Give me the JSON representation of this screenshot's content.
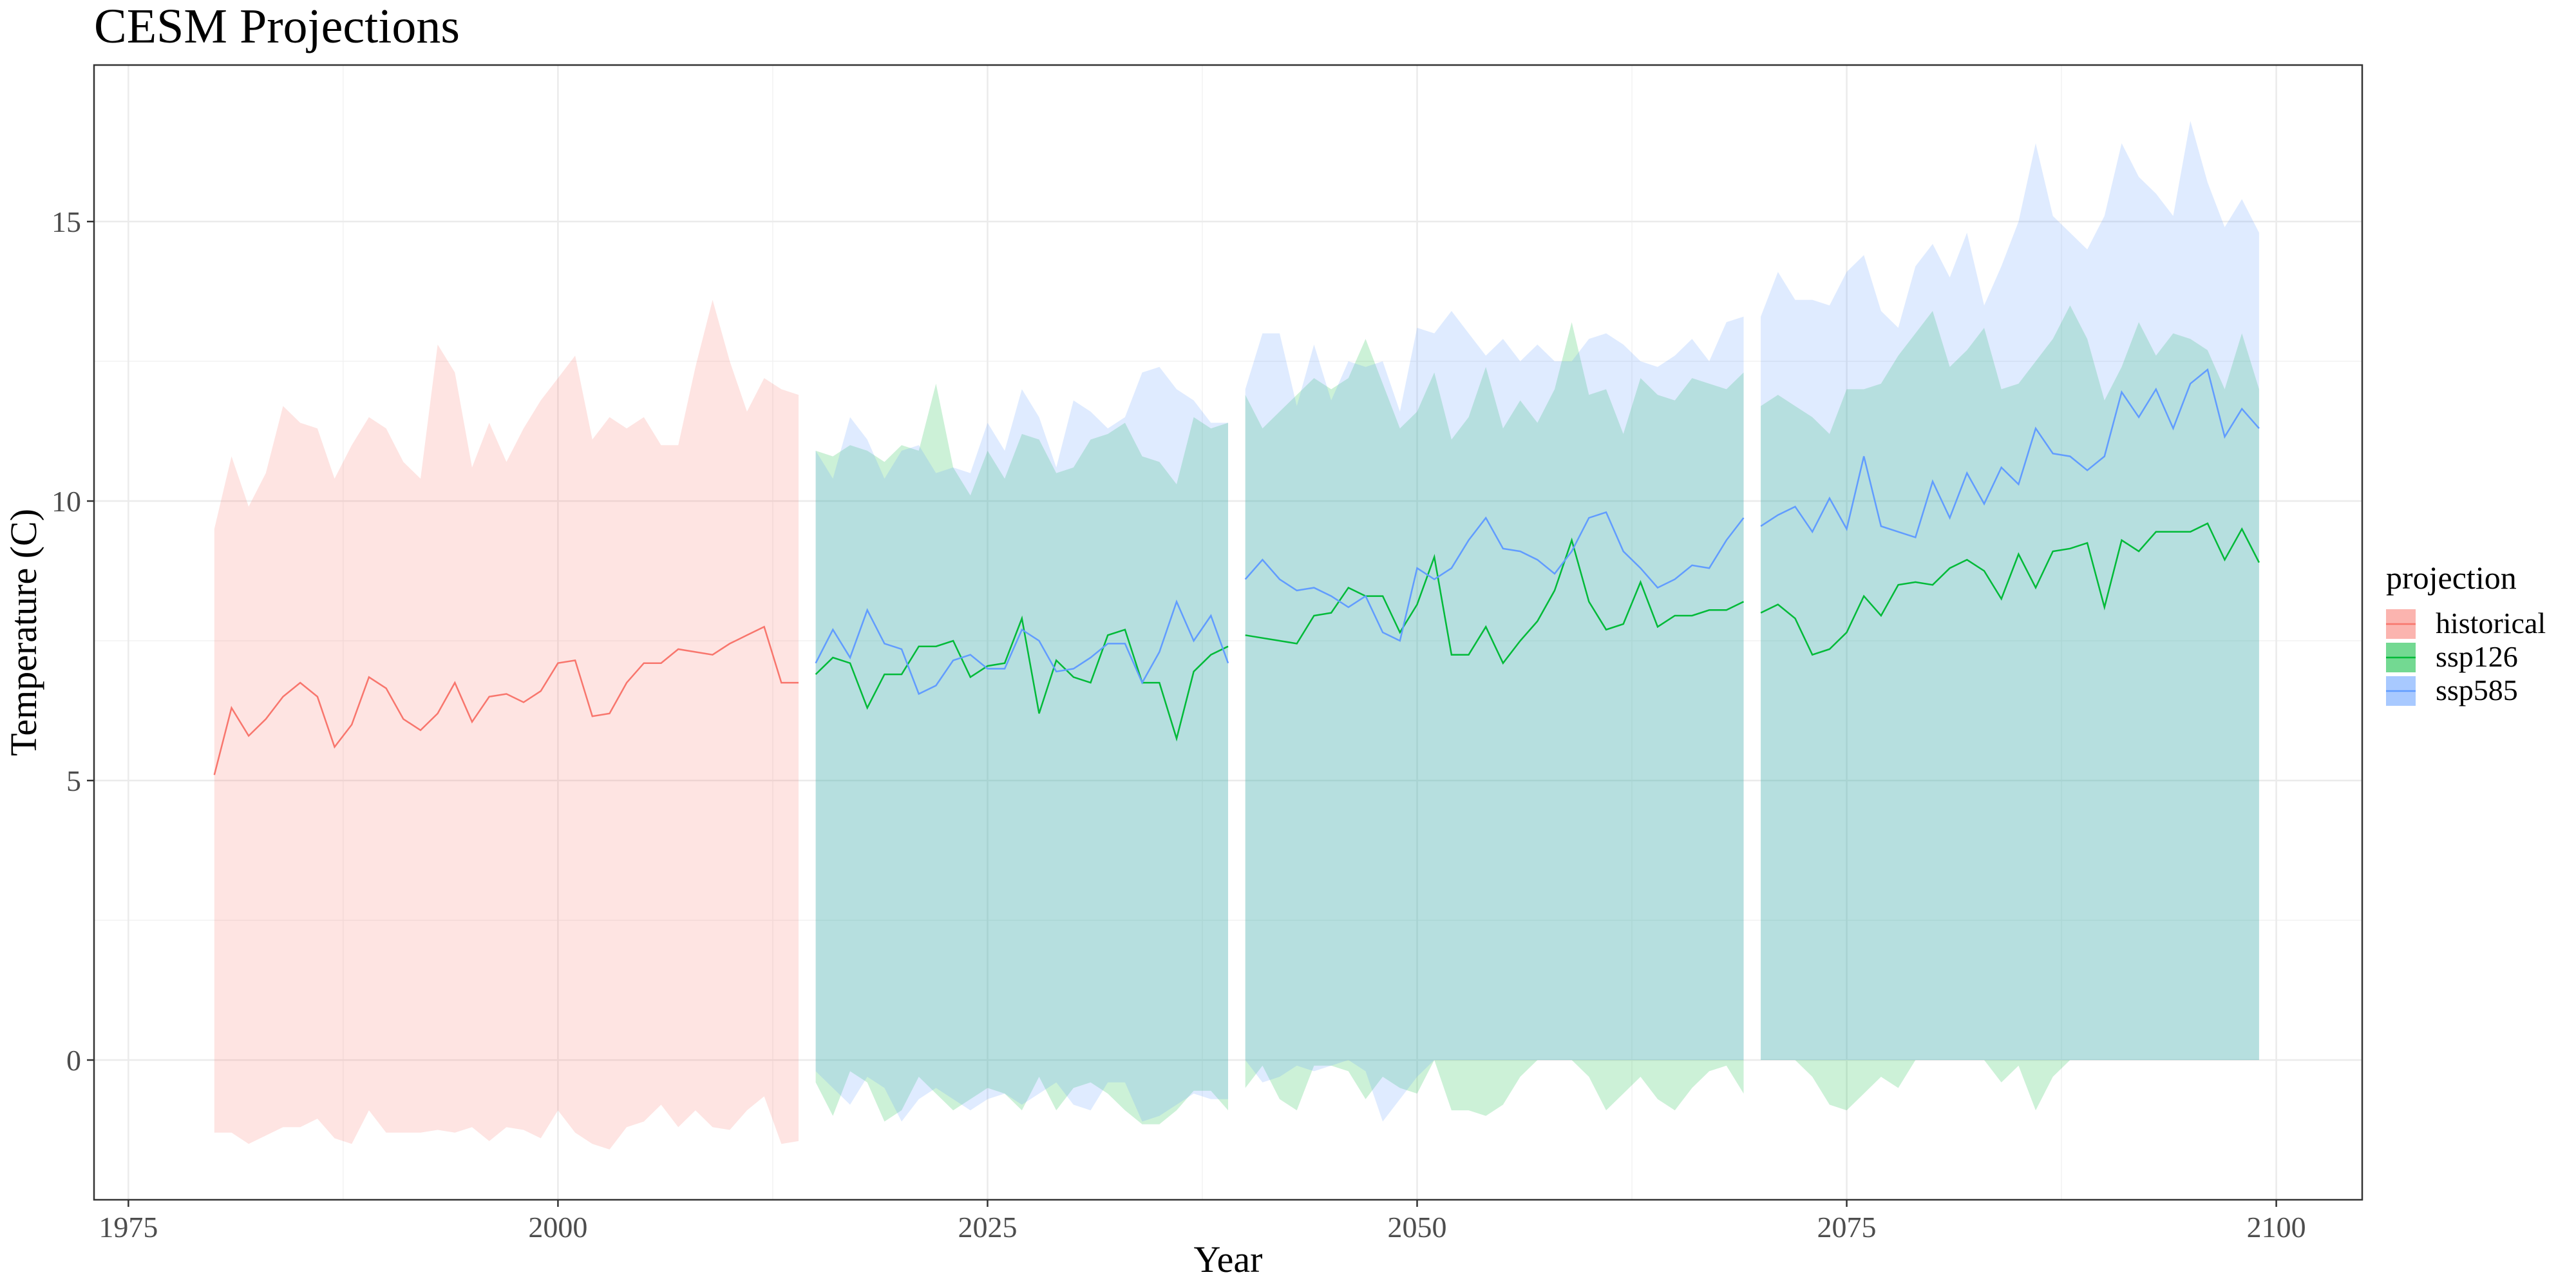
{
  "chart_data": {
    "type": "area",
    "title": "CESM Projections",
    "xlabel": "Year",
    "ylabel": "Temperature (C)",
    "xlim": [
      1973,
      2105
    ],
    "ylim": [
      -2.5,
      17.8
    ],
    "x_ticks": [
      1975,
      2000,
      2025,
      2050,
      2075,
      2100
    ],
    "y_ticks": [
      0,
      5,
      10,
      15
    ],
    "grid": true,
    "legend": {
      "title": "projection",
      "position": "right",
      "entries": [
        "historical",
        "ssp126",
        "ssp585"
      ]
    },
    "colors": {
      "historical": "#F8766D",
      "ssp126": "#00BA38",
      "ssp585": "#619CFF"
    },
    "series": [
      {
        "name": "historical",
        "segments": [
          {
            "x": [
              1980,
              1981,
              1982,
              1983,
              1984,
              1985,
              1986,
              1987,
              1988,
              1989,
              1990,
              1991,
              1992,
              1993,
              1994,
              1995,
              1996,
              1997,
              1998,
              1999,
              2000,
              2001,
              2002,
              2003,
              2004,
              2005,
              2006,
              2007,
              2008,
              2009,
              2010,
              2011,
              2012,
              2013,
              2014
            ],
            "mean": [
              5.1,
              6.3,
              5.8,
              6.1,
              6.5,
              6.75,
              6.5,
              5.6,
              6.0,
              6.85,
              6.65,
              6.1,
              5.9,
              6.2,
              6.75,
              6.05,
              6.5,
              6.55,
              6.4,
              6.6,
              7.1,
              7.15,
              6.15,
              6.2,
              6.75,
              7.1,
              7.1,
              7.35,
              7.3,
              7.25,
              7.45,
              7.6,
              7.75,
              6.75,
              6.75
            ],
            "upper": [
              9.5,
              10.8,
              9.9,
              10.5,
              11.7,
              11.4,
              11.3,
              10.4,
              11.0,
              11.5,
              11.3,
              10.7,
              10.4,
              12.8,
              12.3,
              10.6,
              11.4,
              10.7,
              11.3,
              11.8,
              12.2,
              12.6,
              11.1,
              11.5,
              11.3,
              11.5,
              11.0,
              11.0,
              12.4,
              13.6,
              12.5,
              11.6,
              12.2,
              12.0,
              11.9
            ],
            "lower": [
              -1.3,
              -1.3,
              -1.5,
              -1.35,
              -1.2,
              -1.2,
              -1.05,
              -1.4,
              -1.5,
              -0.9,
              -1.3,
              -1.3,
              -1.3,
              -1.25,
              -1.3,
              -1.2,
              -1.45,
              -1.2,
              -1.25,
              -1.4,
              -0.9,
              -1.3,
              -1.5,
              -1.6,
              -1.2,
              -1.1,
              -0.8,
              -1.2,
              -0.9,
              -1.2,
              -1.25,
              -0.9,
              -0.65,
              -1.5,
              -1.45
            ]
          }
        ]
      },
      {
        "name": "ssp126",
        "segments": [
          {
            "x": [
              2015,
              2016,
              2017,
              2018,
              2019,
              2020,
              2021,
              2022,
              2023,
              2024,
              2025,
              2026,
              2027,
              2028,
              2029,
              2030,
              2031,
              2032,
              2033,
              2034,
              2035,
              2036,
              2037,
              2038,
              2039
            ],
            "mean": [
              6.9,
              7.2,
              7.1,
              6.3,
              6.9,
              6.9,
              7.4,
              7.4,
              7.5,
              6.85,
              7.05,
              7.1,
              7.9,
              6.2,
              7.15,
              6.85,
              6.75,
              7.6,
              7.7,
              6.75,
              6.75,
              5.75,
              6.95,
              7.25,
              7.4
            ],
            "upper": [
              10.9,
              10.8,
              11.0,
              10.9,
              10.7,
              11.0,
              10.9,
              12.1,
              10.6,
              10.1,
              10.9,
              10.4,
              11.2,
              11.1,
              10.5,
              10.6,
              11.1,
              11.2,
              11.4,
              10.8,
              10.7,
              10.3,
              11.5,
              11.3,
              11.4
            ],
            "lower": [
              -0.4,
              -1.0,
              -0.2,
              -0.4,
              -1.1,
              -0.9,
              -0.3,
              -0.6,
              -0.9,
              -0.7,
              -0.5,
              -0.6,
              -0.9,
              -0.3,
              -0.9,
              -0.5,
              -0.4,
              -0.6,
              -0.9,
              -1.15,
              -1.15,
              -0.9,
              -0.55,
              -0.55,
              -0.9
            ]
          },
          {
            "x": [
              2040,
              2041,
              2042,
              2043,
              2044,
              2045,
              2046,
              2047,
              2048,
              2049,
              2050,
              2051,
              2052,
              2053,
              2054,
              2055,
              2056,
              2057,
              2058,
              2059,
              2060,
              2061,
              2062,
              2063,
              2064,
              2065,
              2066,
              2067,
              2068,
              2069
            ],
            "mean": [
              7.6,
              7.55,
              7.5,
              7.45,
              7.95,
              8.0,
              8.45,
              8.3,
              8.3,
              7.65,
              8.15,
              9.0,
              7.25,
              7.25,
              7.75,
              7.1,
              7.5,
              7.85,
              8.4,
              9.3,
              8.2,
              7.7,
              7.8,
              8.55,
              7.75,
              7.95,
              7.95,
              8.05,
              8.05,
              8.2
            ],
            "upper": [
              11.9,
              11.3,
              11.6,
              11.9,
              12.2,
              12.0,
              12.2,
              12.9,
              12.1,
              11.3,
              11.6,
              12.3,
              11.1,
              11.5,
              12.4,
              11.3,
              11.8,
              11.4,
              12.0,
              13.2,
              11.9,
              12.0,
              11.2,
              12.2,
              11.9,
              11.8,
              12.2,
              12.1,
              12.0,
              12.3
            ],
            "lower": [
              -0.5,
              -0.1,
              -0.7,
              -0.9,
              -0.1,
              -0.1,
              -0.2,
              -0.7,
              -0.3,
              -0.5,
              -0.6,
              0.0,
              -0.9,
              -0.9,
              -1.0,
              -0.8,
              -0.3,
              0.0,
              0.0,
              0.0,
              -0.3,
              -0.9,
              -0.6,
              -0.3,
              -0.7,
              -0.9,
              -0.5,
              -0.2,
              -0.1,
              -0.6
            ]
          },
          {
            "x": [
              2070,
              2071,
              2072,
              2073,
              2074,
              2075,
              2076,
              2077,
              2078,
              2079,
              2080,
              2081,
              2082,
              2083,
              2084,
              2085,
              2086,
              2087,
              2088,
              2089,
              2090,
              2091,
              2092,
              2093,
              2094,
              2095,
              2096,
              2097,
              2098,
              2099
            ],
            "mean": [
              8.0,
              8.15,
              7.9,
              7.25,
              7.35,
              7.65,
              8.3,
              7.95,
              8.5,
              8.55,
              8.5,
              8.8,
              8.95,
              8.75,
              8.25,
              9.05,
              8.45,
              9.1,
              9.15,
              9.25,
              8.1,
              9.3,
              9.1,
              9.45,
              9.45,
              9.45,
              9.6,
              8.95,
              9.5,
              8.9
            ],
            "upper": [
              11.7,
              11.9,
              11.7,
              11.5,
              11.2,
              12.0,
              12.0,
              12.1,
              12.6,
              13.0,
              13.4,
              12.4,
              12.7,
              13.1,
              12.0,
              12.1,
              12.5,
              12.9,
              13.5,
              12.9,
              11.8,
              12.4,
              13.2,
              12.6,
              13.0,
              12.9,
              12.7,
              12.0,
              13.0,
              12.0
            ],
            "lower": [
              0.0,
              0.0,
              0.0,
              -0.3,
              -0.8,
              -0.9,
              -0.6,
              -0.3,
              -0.5,
              0.0,
              0.0,
              0.0,
              0.0,
              0.0,
              -0.4,
              -0.1,
              -0.9,
              -0.3,
              0.0,
              0.0,
              0.0,
              0.0,
              0.0,
              0.0,
              0.0,
              0.0,
              0.0,
              0.0,
              0.0,
              0.0
            ]
          }
        ]
      },
      {
        "name": "ssp585",
        "segments": [
          {
            "x": [
              2015,
              2016,
              2017,
              2018,
              2019,
              2020,
              2021,
              2022,
              2023,
              2024,
              2025,
              2026,
              2027,
              2028,
              2029,
              2030,
              2031,
              2032,
              2033,
              2034,
              2035,
              2036,
              2037,
              2038,
              2039
            ],
            "mean": [
              7.1,
              7.7,
              7.2,
              8.05,
              7.45,
              7.35,
              6.55,
              6.7,
              7.15,
              7.25,
              7.0,
              7.0,
              7.7,
              7.5,
              6.95,
              7.0,
              7.2,
              7.45,
              7.45,
              6.75,
              7.3,
              8.2,
              7.5,
              7.95,
              7.1
            ],
            "upper": [
              10.9,
              10.4,
              11.5,
              11.1,
              10.4,
              10.9,
              11.0,
              10.5,
              10.6,
              10.5,
              11.4,
              10.9,
              12.0,
              11.5,
              10.6,
              11.8,
              11.6,
              11.3,
              11.5,
              12.3,
              12.4,
              12.0,
              11.8,
              11.4,
              11.4
            ],
            "lower": [
              -0.2,
              -0.5,
              -0.8,
              -0.3,
              -0.5,
              -1.1,
              -0.7,
              -0.5,
              -0.7,
              -0.9,
              -0.7,
              -0.6,
              -0.8,
              -0.6,
              -0.4,
              -0.8,
              -0.9,
              -0.4,
              -0.4,
              -1.1,
              -1.0,
              -0.8,
              -0.6,
              -0.7,
              -0.7
            ]
          },
          {
            "x": [
              2040,
              2041,
              2042,
              2043,
              2044,
              2045,
              2046,
              2047,
              2048,
              2049,
              2050,
              2051,
              2052,
              2053,
              2054,
              2055,
              2056,
              2057,
              2058,
              2059,
              2060,
              2061,
              2062,
              2063,
              2064,
              2065,
              2066,
              2067,
              2068,
              2069
            ],
            "mean": [
              8.6,
              8.95,
              8.6,
              8.4,
              8.45,
              8.3,
              8.1,
              8.3,
              7.65,
              7.5,
              8.8,
              8.6,
              8.8,
              9.3,
              9.7,
              9.15,
              9.1,
              8.95,
              8.7,
              9.1,
              9.7,
              9.8,
              9.1,
              8.8,
              8.45,
              8.6,
              8.85,
              8.8,
              9.3,
              9.7
            ],
            "upper": [
              12.0,
              13.0,
              13.0,
              11.7,
              12.8,
              11.8,
              12.5,
              12.4,
              12.5,
              11.6,
              13.1,
              13.0,
              13.4,
              13.0,
              12.6,
              12.9,
              12.5,
              12.8,
              12.5,
              12.5,
              12.9,
              13.0,
              12.8,
              12.5,
              12.4,
              12.6,
              12.9,
              12.5,
              13.2,
              13.3
            ],
            "lower": [
              0.0,
              -0.4,
              -0.3,
              -0.1,
              -0.2,
              -0.1,
              0.0,
              -0.2,
              -1.1,
              -0.7,
              -0.3,
              0.0,
              0.0,
              0.0,
              0.0,
              0.0,
              0.0,
              0.0,
              0.0,
              0.0,
              0.0,
              0.0,
              0.0,
              0.0,
              0.0,
              0.0,
              0.0,
              0.0,
              0.0,
              0.0
            ]
          },
          {
            "x": [
              2070,
              2071,
              2072,
              2073,
              2074,
              2075,
              2076,
              2077,
              2078,
              2079,
              2080,
              2081,
              2082,
              2083,
              2084,
              2085,
              2086,
              2087,
              2088,
              2089,
              2090,
              2091,
              2092,
              2093,
              2094,
              2095,
              2096,
              2097,
              2098,
              2099
            ],
            "mean": [
              9.55,
              9.75,
              9.9,
              9.45,
              10.05,
              9.5,
              10.8,
              9.55,
              9.45,
              9.35,
              10.35,
              9.7,
              10.5,
              9.95,
              10.6,
              10.3,
              11.3,
              10.85,
              10.8,
              10.55,
              10.8,
              11.95,
              11.5,
              12.0,
              11.3,
              12.1,
              12.35,
              11.15,
              11.65,
              11.3
            ],
            "upper": [
              13.3,
              14.1,
              13.6,
              13.6,
              13.5,
              14.1,
              14.4,
              13.4,
              13.1,
              14.2,
              14.6,
              14.0,
              14.8,
              13.5,
              14.2,
              15.0,
              16.4,
              15.1,
              14.8,
              14.5,
              15.1,
              16.4,
              15.8,
              15.5,
              15.1,
              16.8,
              15.7,
              14.9,
              15.4,
              14.8
            ],
            "lower": [
              0.0,
              0.0,
              0.0,
              0.0,
              0.0,
              0.0,
              0.0,
              0.0,
              0.0,
              0.0,
              0.0,
              0.0,
              0.0,
              0.0,
              0.0,
              0.0,
              0.0,
              0.0,
              0.0,
              0.0,
              0.0,
              0.0,
              0.0,
              0.0,
              0.0,
              0.0,
              0.0,
              0.0,
              0.0,
              0.0
            ]
          }
        ]
      }
    ]
  }
}
